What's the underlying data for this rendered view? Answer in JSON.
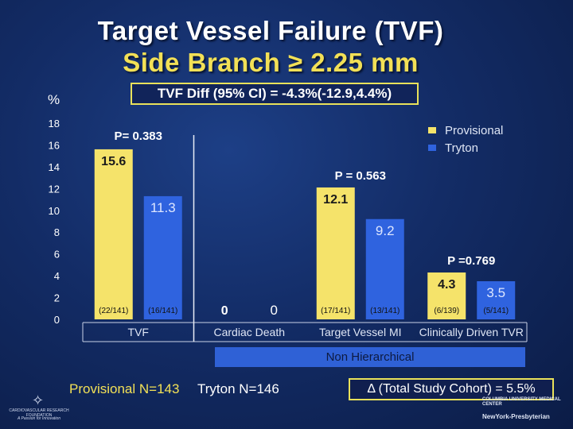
{
  "title": {
    "line1": "Target Vessel Failure (TVF)",
    "line2": "Side Branch ≥ 2.25 mm"
  },
  "diff_text": "TVF Diff (95% CI) = -4.3%(-12.9,4.4%)",
  "percent_label": "%",
  "legend": [
    {
      "name": "Provisional",
      "color": "#f5e36a"
    },
    {
      "name": "Tryton",
      "color": "#2f63df"
    }
  ],
  "chart_data": {
    "type": "bar",
    "categories": [
      "TVF",
      "Cardiac Death",
      "Target Vessel MI",
      "Clinically Driven TVR"
    ],
    "series": [
      {
        "name": "Provisional",
        "color": "#f5e36a",
        "values": [
          15.6,
          0,
          12.1,
          4.3
        ],
        "labels": [
          "15.6",
          "0",
          "12.1",
          "4.3"
        ],
        "counts": [
          "(22/141)",
          "",
          "(17/141)",
          "(6/139)"
        ]
      },
      {
        "name": "Tryton",
        "color": "#2f63df",
        "values": [
          11.3,
          0,
          9.2,
          3.5
        ],
        "labels": [
          "11.3",
          "0",
          "9.2",
          "3.5"
        ],
        "counts": [
          "(16/141)",
          "",
          "(13/141)",
          "(5/141)"
        ]
      }
    ],
    "pvalues": [
      "P= 0.383",
      "",
      "P = 0.563",
      "P =0.769"
    ],
    "yticks": [
      0,
      2,
      4,
      6,
      8,
      10,
      12,
      14,
      16,
      18
    ],
    "ylim": [
      0,
      18
    ],
    "ylabel": "%"
  },
  "non_hierarchical": "Non Hierarchical",
  "footer": {
    "provisional_n": "Provisional N=143",
    "tryton_n": "Tryton N=146",
    "delta": "Δ (Total Study Cohort) = 5.5%"
  },
  "logos": {
    "left_line1": "CARDIOVASCULAR RESEARCH FOUNDATION",
    "left_line2": "A Passion for Innovation",
    "right_line1": "COLUMBIA UNIVERSITY MEDICAL CENTER",
    "right_line2": "NewYork-Presbyterian"
  }
}
